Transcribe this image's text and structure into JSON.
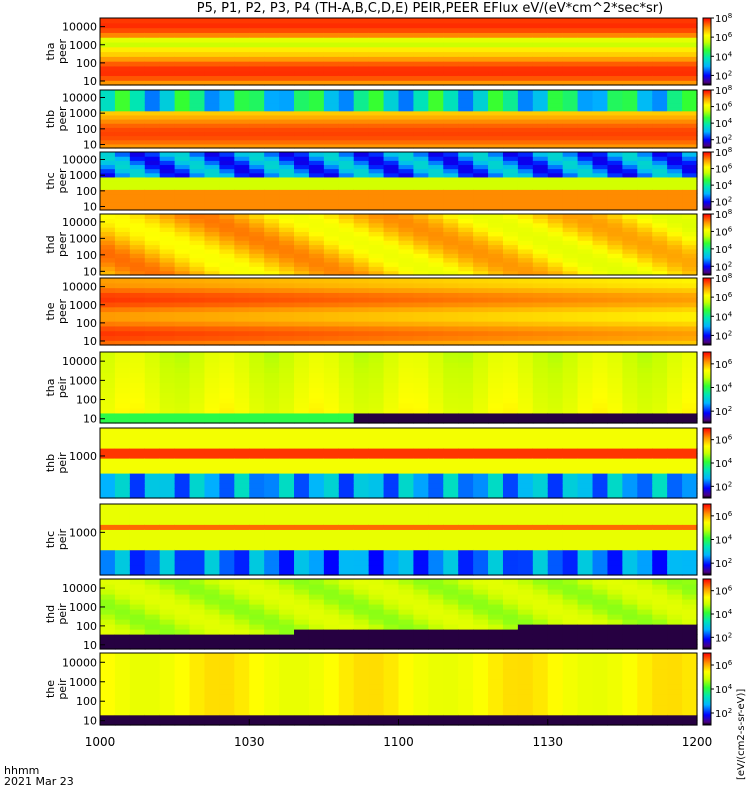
{
  "title": "P5, P1, P2, P3, P4 (TH-A,B,C,D,E) PEIR,PEER EFlux eV/(eV*cm^2*sec*sr)",
  "time_label": "hhmm",
  "date_label": "2021 Mar 23",
  "colorbar_unit_label": "[eV/(cm2-s-sr-eV)]",
  "chart_data": {
    "type": "heatmap",
    "xlabel": "hhmm",
    "x_ticks": [
      "1000",
      "1030",
      "1100",
      "1130",
      "1200"
    ],
    "x_range_minutes": [
      0,
      120
    ],
    "y_scale": "log",
    "panels": [
      {
        "probe": "tha",
        "species": "peer",
        "ylabel": [
          "tha",
          "peer"
        ],
        "y_ticks": [
          "10",
          "100",
          "1000",
          "10000"
        ],
        "y_range": [
          6,
          30000
        ],
        "cbar_ticks": [
          "10^2",
          "10^4",
          "10^6",
          "10^8"
        ],
        "cbar_range": [
          "10^1",
          "10^8"
        ]
      },
      {
        "probe": "thb",
        "species": "peer",
        "ylabel": [
          "thb",
          "peer"
        ],
        "y_ticks": [
          "10",
          "100",
          "1000",
          "10000"
        ],
        "y_range": [
          6,
          30000
        ],
        "cbar_ticks": [
          "10^2",
          "10^4",
          "10^6",
          "10^8"
        ],
        "cbar_range": [
          "10^1",
          "10^8"
        ]
      },
      {
        "probe": "thc",
        "species": "peer",
        "ylabel": [
          "thc",
          "peer"
        ],
        "y_ticks": [
          "10",
          "100",
          "1000",
          "10000"
        ],
        "y_range": [
          6,
          30000
        ],
        "cbar_ticks": [
          "10^2",
          "10^4",
          "10^6",
          "10^8"
        ],
        "cbar_range": [
          "10^1",
          "10^8"
        ]
      },
      {
        "probe": "thd",
        "species": "peer",
        "ylabel": [
          "thd",
          "peer"
        ],
        "y_ticks": [
          "10",
          "100",
          "1000",
          "10000"
        ],
        "y_range": [
          6,
          30000
        ],
        "cbar_ticks": [
          "10^2",
          "10^4",
          "10^6",
          "10^8"
        ],
        "cbar_range": [
          "10^1",
          "10^8"
        ]
      },
      {
        "probe": "the",
        "species": "peer",
        "ylabel": [
          "the",
          "peer"
        ],
        "y_ticks": [
          "10",
          "100",
          "1000",
          "10000"
        ],
        "y_range": [
          6,
          30000
        ],
        "cbar_ticks": [
          "10^2",
          "10^4",
          "10^6",
          "10^8"
        ],
        "cbar_range": [
          "10^1",
          "10^8"
        ]
      },
      {
        "probe": "tha",
        "species": "peir",
        "ylabel": [
          "tha",
          "peir"
        ],
        "y_ticks": [
          "10",
          "100",
          "1000",
          "10000"
        ],
        "y_range": [
          6,
          30000
        ],
        "cbar_ticks": [
          "10^2",
          "10^4",
          "10^6"
        ],
        "cbar_range": [
          "10^1",
          "10^7"
        ]
      },
      {
        "probe": "thb",
        "species": "peir",
        "ylabel": [
          "thb",
          "peir"
        ],
        "y_ticks": [
          "1000"
        ],
        "y_range": [
          6,
          30000
        ],
        "cbar_ticks": [
          "10^2",
          "10^4",
          "10^6"
        ],
        "cbar_range": [
          "10^1",
          "10^7"
        ]
      },
      {
        "probe": "thc",
        "species": "peir",
        "ylabel": [
          "thc",
          "peir"
        ],
        "y_ticks": [
          "1000"
        ],
        "y_range": [
          6,
          30000
        ],
        "cbar_ticks": [
          "10^2",
          "10^4",
          "10^6"
        ],
        "cbar_range": [
          "10^1",
          "10^7"
        ]
      },
      {
        "probe": "thd",
        "species": "peir",
        "ylabel": [
          "thd",
          "peir"
        ],
        "y_ticks": [
          "10",
          "100",
          "1000",
          "10000"
        ],
        "y_range": [
          6,
          30000
        ],
        "cbar_ticks": [
          "10^2",
          "10^4",
          "10^6"
        ],
        "cbar_range": [
          "10^1",
          "10^7"
        ]
      },
      {
        "probe": "the",
        "species": "peir",
        "ylabel": [
          "the",
          "peir"
        ],
        "y_ticks": [
          "10",
          "100",
          "1000",
          "10000"
        ],
        "y_range": [
          6,
          30000
        ],
        "cbar_ticks": [
          "10^2",
          "10^4",
          "10^6"
        ],
        "cbar_range": [
          "10^1",
          "10^7"
        ]
      }
    ]
  }
}
